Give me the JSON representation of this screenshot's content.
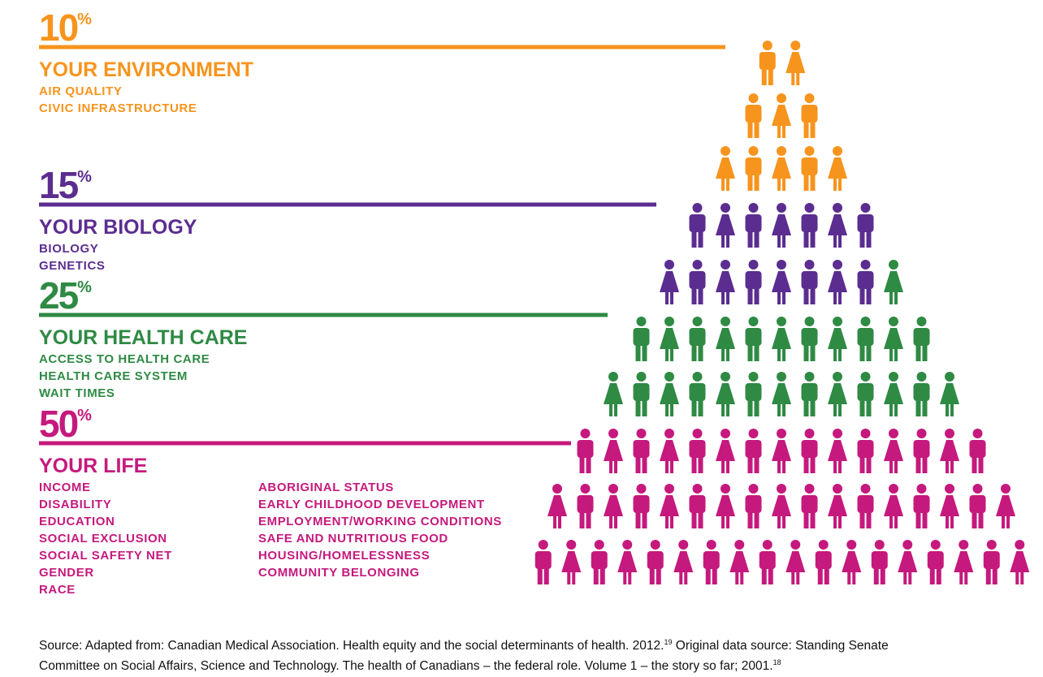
{
  "percent_sign": "%",
  "sections": [
    {
      "percent": 10,
      "heading": "YOUR ENVIRONMENT",
      "color": "#f7941d",
      "items": [
        [
          "AIR QUALITY",
          "CIVIC INFRASTRUCTURE"
        ]
      ]
    },
    {
      "percent": 15,
      "heading": "YOUR BIOLOGY",
      "color": "#5b2d90",
      "items": [
        [
          "BIOLOGY",
          "GENETICS"
        ]
      ]
    },
    {
      "percent": 25,
      "heading": "YOUR HEALTH CARE",
      "color": "#2f8a44",
      "items": [
        [
          "ACCESS TO HEALTH CARE",
          "HEALTH CARE SYSTEM",
          "WAIT TIMES"
        ]
      ]
    },
    {
      "percent": 50,
      "heading": "YOUR LIFE",
      "color": "#c5197d",
      "items": [
        [
          "INCOME",
          "DISABILITY",
          "EDUCATION",
          "SOCIAL EXCLUSION",
          "SOCIAL SAFETY NET",
          "GENDER",
          "RACE"
        ],
        [
          "ABORIGINAL STATUS",
          "EARLY CHILDHOOD DEVELOPMENT",
          "EMPLOYMENT/WORKING CONDITIONS",
          "SAFE AND NUTRITIOUS FOOD",
          "HOUSING/HOMELESSNESS",
          "COMMUNITY BELONGING"
        ]
      ]
    }
  ],
  "source": {
    "line1": "Source: Adapted from: Canadian Medical Association. Health equity and the social determinants of health. 2012.",
    "ref1": "19",
    "line1b": " Original data source: Standing Senate",
    "line2": "Committee on Social Affairs, Science and Technology. The health of Canadians – the federal role. Volume 1 – the story so far; 2001.",
    "ref2": "18"
  }
}
